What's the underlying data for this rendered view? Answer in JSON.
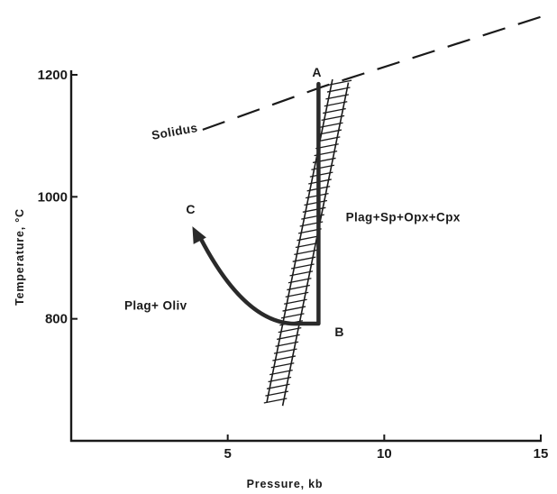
{
  "chart_data": {
    "type": "line",
    "title": "",
    "xlabel": "Pressure, kb",
    "ylabel": "Temperature, °C",
    "xlim": [
      0,
      15
    ],
    "ylim": [
      600,
      1200
    ],
    "x_ticks": [
      5,
      10,
      15
    ],
    "y_ticks": [
      800,
      1000,
      1200
    ],
    "grid": false,
    "solidus": {
      "label": "Solidus",
      "points": [
        [
          4.2,
          1110
        ],
        [
          8.0,
          1180
        ],
        [
          15,
          1295
        ]
      ]
    },
    "phase_boundary": {
      "style": "hatched band",
      "lower": [
        6.5,
        660
      ],
      "upper": [
        8.6,
        1190
      ]
    },
    "path": {
      "points": [
        {
          "label": "A",
          "p": 7.9,
          "t": 1185
        },
        {
          "label": "B",
          "p": 7.9,
          "t": 795
        },
        {
          "label": "C",
          "p": 3.9,
          "t": 950
        }
      ]
    },
    "fields": [
      {
        "label": "Plag+Sp+Opx+Cpx",
        "p": 10.6,
        "t": 960
      },
      {
        "label": "Plag+ Oliv",
        "p": 2.7,
        "t": 815
      }
    ]
  }
}
